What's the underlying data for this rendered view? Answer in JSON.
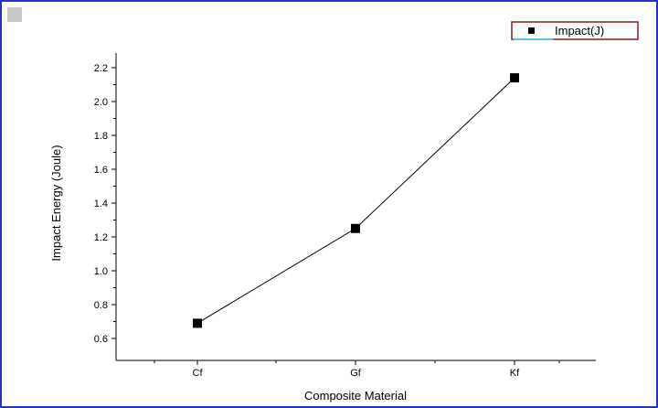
{
  "chart_data": {
    "type": "line",
    "categories": [
      "Cf",
      "Gf",
      "Kf"
    ],
    "series": [
      {
        "name": "Impact(J)",
        "values": [
          0.69,
          1.25,
          2.14
        ],
        "color": "#000000",
        "marker": "square"
      }
    ],
    "xlabel": "Composite Material",
    "ylabel": "Impact Energy (Joule)",
    "ylim": [
      0.5,
      2.3
    ],
    "yticks": [
      0.6,
      0.8,
      1.0,
      1.2,
      1.4,
      1.6,
      1.8,
      2.0,
      2.2
    ],
    "ytick_labels": [
      "0.6",
      "0.8",
      "1.0",
      "1.2",
      "1.4",
      "1.6",
      "1.8",
      "2.0",
      "2.2"
    ],
    "grid": false,
    "legend_position": "top-right"
  },
  "colors": {
    "frame_border": "#2233cc",
    "corner_marker": "#c8c8c8",
    "legend_border": "#8b1a1a",
    "legend_accent": "#5fc8d8"
  }
}
